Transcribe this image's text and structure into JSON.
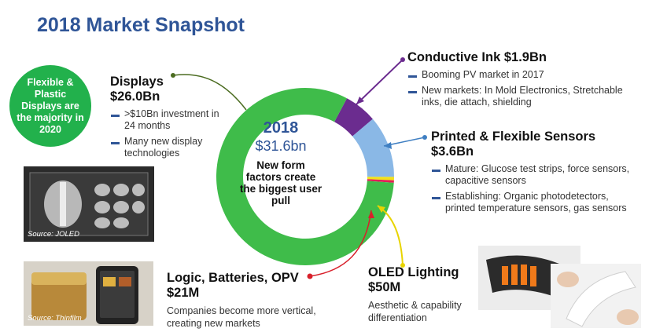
{
  "title": "2018 Market Snapshot",
  "badge": "Flexible & Plastic Displays are the majority in 2020",
  "center": {
    "year": "2018",
    "total": "$31.6bn",
    "description": "New form factors create the biggest user pull"
  },
  "segments": {
    "displays": {
      "name": "Displays",
      "value": "$26.0Bn",
      "bullets": [
        ">$10Bn investment in 24 months",
        "Many new display technologies"
      ]
    },
    "conductive_ink": {
      "name": "Conductive Ink $1.9Bn",
      "bullets": [
        "Booming PV market in 2017",
        "New markets: In Mold Electronics, Stretchable inks, die attach, shielding"
      ]
    },
    "sensors": {
      "name": "Printed & Flexible Sensors",
      "value": "$3.6Bn",
      "bullets": [
        "Mature: Glucose test  strips, force sensors, capacitive sensors",
        "Establishing: Organic photodetectors, printed temperature sensors, gas sensors"
      ]
    },
    "oled": {
      "name": "OLED Lighting",
      "value": "$50M",
      "text": "Aesthetic & capability differentiation"
    },
    "logic": {
      "name": "Logic, Batteries, OPV",
      "value": "$21M",
      "text": "Companies become more vertical, creating new markets"
    }
  },
  "photos": {
    "xray_source": "Source: JOLED",
    "cosmetic_source": "Source: Thinfilm"
  },
  "chart_data": {
    "type": "pie",
    "donut": true,
    "total_label": "$31.6bn",
    "categories": [
      "Displays",
      "Conductive Ink",
      "Printed & Flexible Sensors",
      "OLED Lighting",
      "Logic, Batteries, OPV"
    ],
    "values": [
      26.0,
      1.9,
      3.6,
      0.05,
      0.021
    ],
    "units": "$Bn",
    "colors": [
      "#3fbc4a",
      "#6b2c8f",
      "#8ab8e6",
      "#f2e21a",
      "#e01f57"
    ]
  }
}
